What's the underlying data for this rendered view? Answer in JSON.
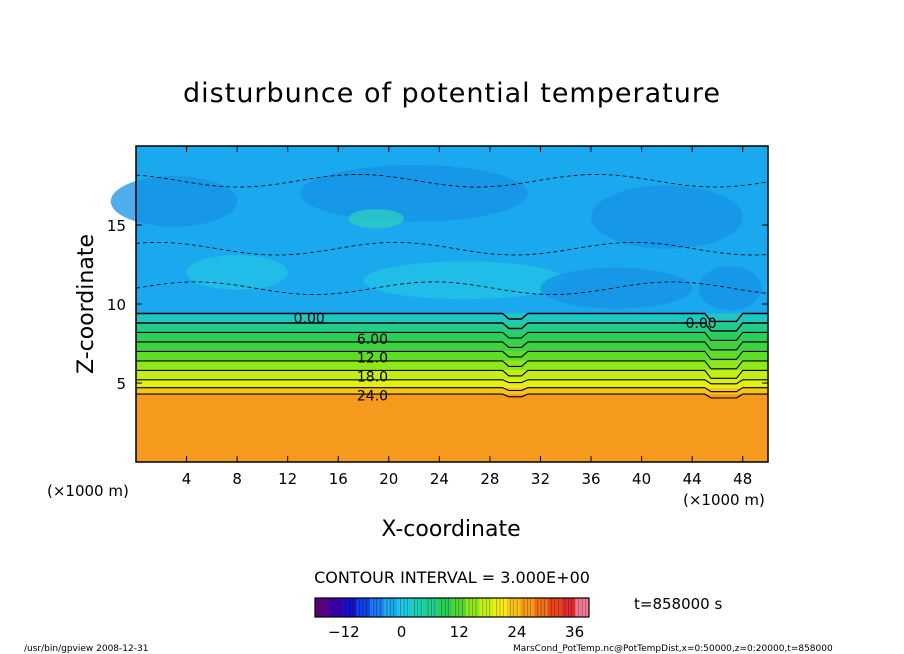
{
  "chart_data": {
    "type": "heatmap",
    "title": "disturbunce of potential temperature",
    "xlabel": "X-coordinate",
    "ylabel": "Z-coordinate",
    "x_unit_label": "(×1000 m)",
    "y_unit_label": "(×1000 m)",
    "xlim": [
      0,
      50
    ],
    "ylim": [
      0,
      20
    ],
    "x_ticks": [
      4,
      8,
      12,
      16,
      20,
      24,
      28,
      32,
      36,
      40,
      44,
      48
    ],
    "y_ticks": [
      5,
      10,
      15
    ],
    "contour_interval_text": "CONTOUR INTERVAL = 3.000E+00",
    "contour_labels": [
      {
        "text": "0.00",
        "x": 12,
        "z": 9.1
      },
      {
        "text": "6.00",
        "x": 17,
        "z": 7.8
      },
      {
        "text": "12.0",
        "x": 17,
        "z": 6.6
      },
      {
        "text": "18.0",
        "x": 17,
        "z": 5.4
      },
      {
        "text": "24.0",
        "x": 17,
        "z": 4.2
      },
      {
        "text": "0.00",
        "x": 43,
        "z": 8.8
      }
    ],
    "layers": [
      {
        "z_min": 0,
        "z_max": 4.3,
        "value": 27,
        "color": "#f59a1c"
      },
      {
        "z_min": 4.3,
        "z_max": 4.7,
        "value": 24,
        "color": "#f7c51a"
      },
      {
        "z_min": 4.7,
        "z_max": 5.2,
        "value": 21,
        "color": "#e4ef14"
      },
      {
        "z_min": 5.2,
        "z_max": 5.8,
        "value": 18,
        "color": "#c5ef12"
      },
      {
        "z_min": 5.8,
        "z_max": 6.4,
        "value": 15,
        "color": "#8fe61a"
      },
      {
        "z_min": 6.4,
        "z_max": 7.0,
        "value": 12,
        "color": "#5fdc2a"
      },
      {
        "z_min": 7.0,
        "z_max": 7.6,
        "value": 9,
        "color": "#3fd23e"
      },
      {
        "z_min": 7.6,
        "z_max": 8.2,
        "value": 6,
        "color": "#2ccd58"
      },
      {
        "z_min": 8.2,
        "z_max": 8.8,
        "value": 3,
        "color": "#22cc8a"
      },
      {
        "z_min": 8.8,
        "z_max": 9.4,
        "value": 0,
        "color": "#1ec7c2"
      },
      {
        "z_min": 9.4,
        "z_max": 20,
        "value": -3,
        "color": "#1aa9ee"
      }
    ],
    "colorbar": {
      "min": -18,
      "max": 39,
      "tick_values": [
        -12,
        0,
        12,
        24,
        36
      ],
      "colors": [
        "#5a0080",
        "#3b00a8",
        "#1a10c8",
        "#1040e0",
        "#1a78f0",
        "#1aa9ee",
        "#1ec7e2",
        "#1ed0b0",
        "#22cc8a",
        "#2ccd58",
        "#4fd634",
        "#8fe61a",
        "#c5ef12",
        "#f2ea14",
        "#f7c51a",
        "#f59a1c",
        "#f07018",
        "#e84418",
        "#e02a30",
        "#f07a90"
      ]
    }
  },
  "time_label": "t=858000 s",
  "footer_left": "/usr/bin/gpview   2008-12-31",
  "footer_right": "MarsCond_PotTemp.nc@PotTempDist,x=0:50000,z=0:20000,t=858000"
}
